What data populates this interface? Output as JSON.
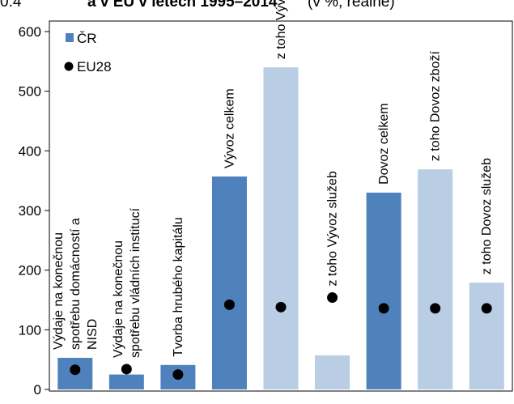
{
  "title_strip": {
    "prefix": "0.4",
    "main": "a v EU v letech 1995–2014",
    "unit": "(v %, reálně)"
  },
  "chart_data": {
    "type": "bar",
    "title": "",
    "xlabel": "",
    "ylabel": "",
    "ylim": [
      0,
      600
    ],
    "yticks": [
      0,
      100,
      200,
      300,
      400,
      500,
      600
    ],
    "grid": false,
    "legend": {
      "placement": "top-left",
      "entries": [
        "ČR",
        "EU28"
      ]
    },
    "categories": [
      [
        "Výdaje na konečnou",
        "spotřebu domácností a",
        "NISD"
      ],
      [
        "Výdaje na konečnou",
        "spotřebu vládních institucí"
      ],
      [
        "Tvorba hrubého kapitálu"
      ],
      [
        "Vývoz celkem"
      ],
      [
        "z toho Vývoz zboží"
      ],
      [
        "z toho Vývoz služeb"
      ],
      [
        "Dovoz celkem"
      ],
      [
        "z toho Dovoz zboží"
      ],
      [
        "z toho Dovoz služeb"
      ]
    ],
    "series": [
      {
        "name": "ČR",
        "type": "bar",
        "values": [
          53,
          25,
          41,
          357,
          540,
          57,
          330,
          369,
          179
        ],
        "colors": [
          "#4f81bd",
          "#4f81bd",
          "#4f81bd",
          "#4f81bd",
          "#b9cde5",
          "#b9cde5",
          "#4f81bd",
          "#b9cde5",
          "#b9cde5"
        ]
      },
      {
        "name": "EU28",
        "type": "marker",
        "values": [
          33,
          34,
          25,
          142,
          138,
          154,
          136,
          136,
          136
        ],
        "color": "#000000"
      }
    ]
  }
}
